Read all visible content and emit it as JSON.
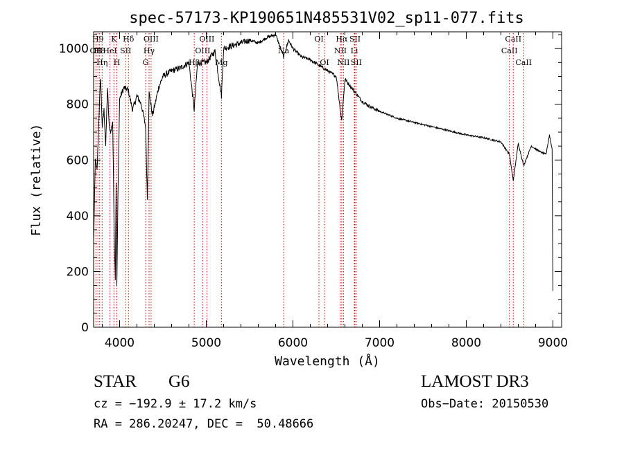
{
  "chart_data": {
    "type": "line",
    "title": "spec-57173-KP190651N485531V02_sp11-077.fits",
    "xlabel": "Wavelength (Å)",
    "ylabel": "Flux (relative)",
    "xlim": [
      3700,
      9100
    ],
    "ylim": [
      0,
      1060
    ],
    "xticks": [
      4000,
      5000,
      6000,
      7000,
      8000,
      9000
    ],
    "yticks": [
      0,
      200,
      400,
      600,
      800,
      1000
    ],
    "grid": false,
    "series": [
      {
        "name": "spectrum",
        "x": [
          3700,
          3720,
          3740,
          3760,
          3780,
          3800,
          3820,
          3840,
          3860,
          3880,
          3900,
          3920,
          3940,
          3950,
          3960,
          3968,
          3980,
          4000,
          4050,
          4100,
          4150,
          4200,
          4250,
          4300,
          4320,
          4340,
          4380,
          4450,
          4500,
          4600,
          4700,
          4800,
          4861,
          4900,
          5000,
          5100,
          5175,
          5200,
          5300,
          5400,
          5500,
          5600,
          5700,
          5800,
          5893,
          5950,
          6000,
          6100,
          6200,
          6300,
          6400,
          6500,
          6563,
          6600,
          6700,
          6800,
          6900,
          7000,
          7200,
          7400,
          7600,
          7800,
          8000,
          8200,
          8400,
          8498,
          8542,
          8600,
          8662,
          8750,
          8850,
          8920,
          8960,
          8990,
          9000
        ],
        "y": [
          300,
          600,
          560,
          740,
          900,
          720,
          780,
          650,
          860,
          720,
          700,
          740,
          300,
          180,
          520,
          140,
          450,
          820,
          860,
          850,
          780,
          830,
          800,
          720,
          460,
          840,
          760,
          860,
          900,
          920,
          930,
          950,
          780,
          950,
          950,
          990,
          830,
          1000,
          1010,
          1020,
          1030,
          1020,
          1040,
          1050,
          970,
          1030,
          1000,
          970,
          960,
          940,
          920,
          900,
          740,
          890,
          850,
          810,
          790,
          775,
          750,
          735,
          720,
          705,
          690,
          680,
          665,
          620,
          525,
          660,
          580,
          650,
          630,
          620,
          690,
          640,
          130
        ]
      }
    ],
    "line_markers": [
      {
        "wavelength": 3750,
        "label": "H9",
        "row": 0
      },
      {
        "wavelength": 3770,
        "label": "H8",
        "row": 1
      },
      {
        "wavelength": 3727,
        "label": "OII",
        "row": 1
      },
      {
        "wavelength": 3798,
        "label": "Hη",
        "row": 2
      },
      {
        "wavelength": 3889,
        "label": "HeI",
        "row": 1
      },
      {
        "wavelength": 3934,
        "label": "K",
        "row": 0
      },
      {
        "wavelength": 3968,
        "label": "H",
        "row": 2
      },
      {
        "wavelength": 4070,
        "label": "SII",
        "row": 1
      },
      {
        "wavelength": 4102,
        "label": "Hδ",
        "row": 0
      },
      {
        "wavelength": 4300,
        "label": "G",
        "row": 2
      },
      {
        "wavelength": 4340,
        "label": "Hγ",
        "row": 1
      },
      {
        "wavelength": 4363,
        "label": "OIII",
        "row": 0
      },
      {
        "wavelength": 4861,
        "label": "Hβ",
        "row": 2
      },
      {
        "wavelength": 4959,
        "label": "OIII",
        "row": 1
      },
      {
        "wavelength": 5007,
        "label": "OIII",
        "row": 0
      },
      {
        "wavelength": 5175,
        "label": "Mg",
        "row": 2
      },
      {
        "wavelength": 5893,
        "label": "Na",
        "row": 1
      },
      {
        "wavelength": 6300,
        "label": "OI",
        "row": 0
      },
      {
        "wavelength": 6364,
        "label": "OI",
        "row": 2
      },
      {
        "wavelength": 6548,
        "label": "NII",
        "row": 1
      },
      {
        "wavelength": 6563,
        "label": "Hα",
        "row": 0
      },
      {
        "wavelength": 6583,
        "label": "NII",
        "row": 2
      },
      {
        "wavelength": 6708,
        "label": "Li",
        "row": 1
      },
      {
        "wavelength": 6716,
        "label": "SII",
        "row": 0
      },
      {
        "wavelength": 6731,
        "label": "SII",
        "row": 2
      },
      {
        "wavelength": 8498,
        "label": "CaII",
        "row": 1
      },
      {
        "wavelength": 8542,
        "label": "CaII",
        "row": 0
      },
      {
        "wavelength": 8662,
        "label": "CaII",
        "row": 2
      }
    ]
  },
  "info": {
    "class": "STAR",
    "subclass": "G6",
    "survey": "LAMOST DR3",
    "velocity": "cz = −192.9 ± 17.2 km/s",
    "obs_date": "Obs−Date: 20150530",
    "coords": "RA = 286.20247, DEC =  50.48666"
  },
  "colors": {
    "marker": "#cc0000",
    "line": "#000000"
  }
}
